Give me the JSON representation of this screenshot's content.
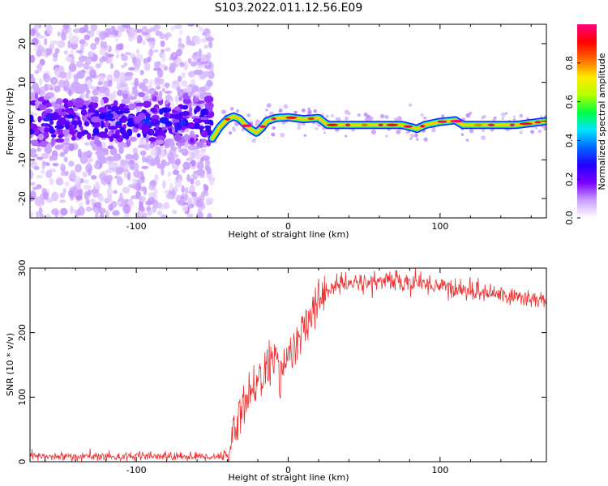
{
  "title": "S103.2022.011.12.56.E09",
  "chart_data": [
    {
      "type": "heatmap",
      "xlabel": "Height of straight line (km)",
      "ylabel": "Frequency (Hz)",
      "xlim": [
        -170,
        170
      ],
      "ylim": [
        -25,
        25
      ],
      "x_ticks": [
        -100,
        0,
        100
      ],
      "y_ticks": [
        -20,
        -10,
        0,
        10,
        20
      ],
      "colorbar": {
        "label": "Normalized spectral amplitude",
        "range": [
          0,
          1
        ],
        "ticks": [
          "0.0",
          "0.2",
          "0.4",
          "0.6",
          "0.8"
        ],
        "colors": [
          "#ffffff",
          "#c9a0ff",
          "#7a00ff",
          "#2200ff",
          "#0066ff",
          "#00e5ff",
          "#00ff40",
          "#b6ff00",
          "#ffea00",
          "#ff6a00",
          "#ff0000",
          "#ff0080"
        ]
      },
      "noise_region": {
        "x_range": [
          -170,
          -50
        ],
        "core_amplitude": 0.25,
        "core_halfwidth_hz": 5
      },
      "signal_track": {
        "x": [
          -50,
          -45,
          -40,
          -36,
          -32,
          -28,
          -25,
          -21,
          -18,
          -14,
          -8,
          0,
          10,
          20,
          26,
          40,
          60,
          75,
          85,
          90,
          100,
          110,
          115,
          130,
          150,
          160,
          170
        ],
        "freq": [
          -4.5,
          -1.5,
          0.5,
          1.2,
          0.6,
          -1.0,
          -2.0,
          -3.0,
          -2.0,
          0.0,
          0.8,
          1.0,
          0.5,
          0.8,
          -1.0,
          -1.0,
          -1.0,
          -1.0,
          -2.0,
          -1.0,
          -0.2,
          0.2,
          -1.0,
          -1.0,
          -1.0,
          -0.5,
          0.0
        ]
      }
    },
    {
      "type": "line",
      "xlabel": "Height of straight line (km)",
      "ylabel": "SNR (10 * v/v)",
      "xlim": [
        -170,
        170
      ],
      "ylim": [
        0,
        300
      ],
      "x_ticks": [
        -100,
        0,
        100
      ],
      "y_ticks": [
        0,
        100,
        200,
        300
      ],
      "series_color": "#ee3030",
      "trend": {
        "x": [
          -170,
          -50,
          -40,
          -35,
          -30,
          -25,
          -20,
          -15,
          -10,
          -5,
          0,
          5,
          10,
          15,
          20,
          25,
          30,
          40,
          60,
          80,
          95,
          110,
          130,
          150,
          170
        ],
        "y": [
          8,
          8,
          9,
          55,
          85,
          110,
          125,
          140,
          160,
          140,
          165,
          175,
          200,
          225,
          250,
          265,
          272,
          275,
          280,
          278,
          275,
          268,
          262,
          255,
          250
        ]
      }
    }
  ]
}
